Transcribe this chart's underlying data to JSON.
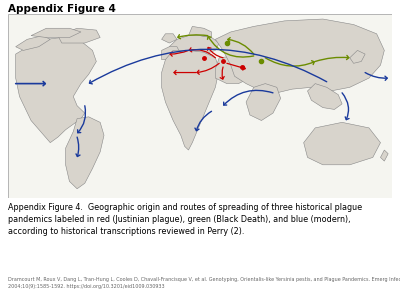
{
  "title": "Appendix Figure 4",
  "title_fontsize": 7.5,
  "title_fontweight": "bold",
  "caption_text": "Appendix Figure 4.  Geographic origin and routes of spreading of three historical plague\npandemics labeled in red (Justinian plague), green (Black Death), and blue (modern),\naccording to historical transcriptions reviewed in Perry (2).",
  "caption_fontsize": 5.8,
  "reference_text": "Dramcourt M, Roux V, Dang L, Tran-Hung L, Cooles D, Chavall-Francisque V, et al. Genotyping, Orientalis-like Yersinia pestis, and Plague Pandemics. Emerg Infect Dis.\n2004;10(9):1585-1592. https://doi.org/10.3201/eid1009.030933",
  "reference_fontsize": 3.5,
  "background_color": "#ffffff",
  "red_color": "#cc0000",
  "green_color": "#6b8c00",
  "blue_color": "#1a3a9c",
  "fig_width": 4.0,
  "fig_height": 3.0,
  "dpi": 100
}
